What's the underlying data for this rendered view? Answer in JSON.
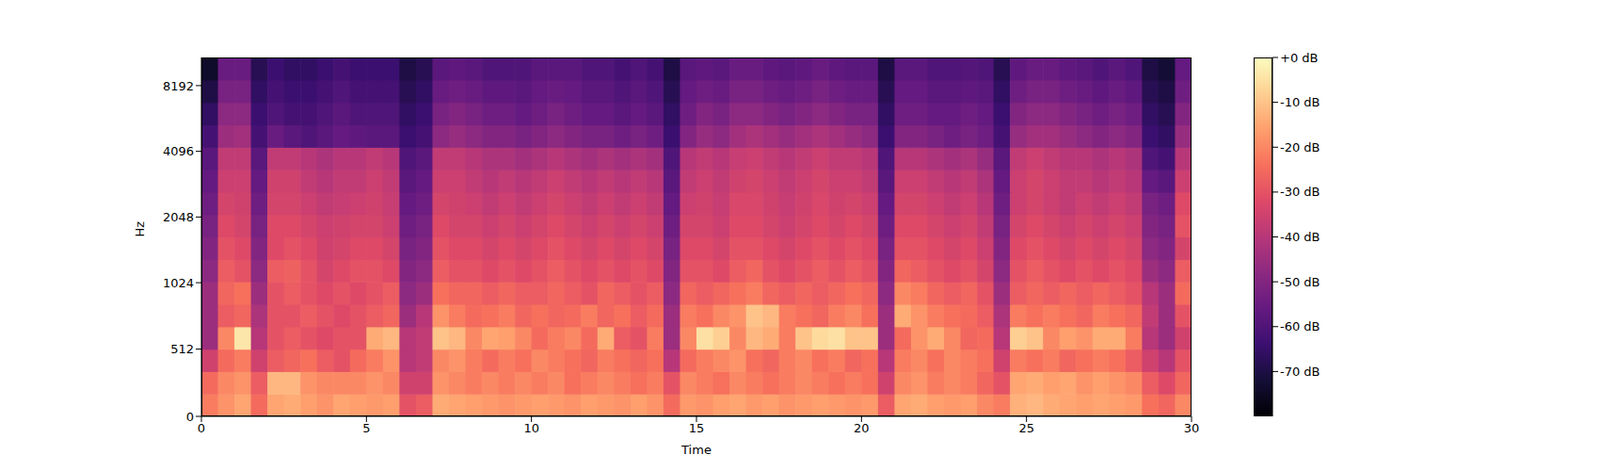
{
  "chart_data": {
    "type": "heatmap",
    "x_label": "Time",
    "y_label": "Hz",
    "x": [
      0.25,
      0.75,
      1.25,
      1.75,
      2.25,
      2.75,
      3.25,
      3.75,
      4.25,
      4.75,
      5.25,
      5.75,
      6.25,
      6.75,
      7.25,
      7.75,
      8.25,
      8.75,
      9.25,
      9.75,
      10.25,
      10.75,
      11.25,
      11.75,
      12.25,
      12.75,
      13.25,
      13.75,
      14.25,
      14.75,
      15.25,
      15.75,
      16.25,
      16.75,
      17.25,
      17.75,
      18.25,
      18.75,
      19.25,
      19.75,
      20.25,
      20.75,
      21.25,
      21.75,
      22.25,
      22.75,
      23.25,
      23.75,
      24.25,
      24.75,
      25.25,
      25.75,
      26.25,
      26.75,
      27.25,
      27.75,
      28.25,
      28.75,
      29.25,
      29.75
    ],
    "y": [
      85,
      256,
      427,
      597,
      768,
      939,
      1164,
      1474,
      1869,
      2367,
      3000,
      3800,
      4813,
      6100,
      7727,
      9793
    ],
    "z": [
      [
        -22,
        -18,
        -15,
        -25,
        -15,
        -14,
        -16,
        -18,
        -15,
        -16,
        -17,
        -16,
        -30,
        -28,
        -14,
        -15,
        -16,
        -17,
        -18,
        -17,
        -16,
        -17,
        -18,
        -16,
        -17,
        -18,
        -16,
        -18,
        -25,
        -17,
        -18,
        -16,
        -15,
        -17,
        -16,
        -18,
        -17,
        -16,
        -17,
        -18,
        -17,
        -28,
        -15,
        -14,
        -16,
        -17,
        -16,
        -20,
        -22,
        -13,
        -12,
        -14,
        -15,
        -16,
        -15,
        -16,
        -17,
        -24,
        -26,
        -20
      ],
      [
        -25,
        -20,
        -18,
        -28,
        -12,
        -12,
        -18,
        -20,
        -20,
        -20,
        -18,
        -20,
        -35,
        -35,
        -18,
        -20,
        -22,
        -20,
        -22,
        -20,
        -22,
        -20,
        -24,
        -22,
        -20,
        -22,
        -24,
        -22,
        -30,
        -20,
        -22,
        -24,
        -20,
        -22,
        -24,
        -22,
        -20,
        -22,
        -24,
        -22,
        -24,
        -35,
        -20,
        -18,
        -22,
        -20,
        -22,
        -26,
        -30,
        -15,
        -14,
        -16,
        -15,
        -18,
        -16,
        -18,
        -20,
        -28,
        -32,
        -26
      ],
      [
        -35,
        -25,
        -22,
        -35,
        -28,
        -26,
        -24,
        -28,
        -30,
        -25,
        -22,
        -18,
        -40,
        -38,
        -20,
        -18,
        -22,
        -25,
        -22,
        -24,
        -20,
        -22,
        -24,
        -26,
        -22,
        -24,
        -26,
        -24,
        -40,
        -25,
        -22,
        -20,
        -18,
        -24,
        -26,
        -22,
        -20,
        -24,
        -22,
        -26,
        -24,
        -40,
        -22,
        -20,
        -24,
        -20,
        -22,
        -24,
        -35,
        -22,
        -24,
        -22,
        -26,
        -24,
        -22,
        -24,
        -28,
        -35,
        -40,
        -30
      ],
      [
        -45,
        -20,
        -4,
        -40,
        -30,
        -28,
        -30,
        -32,
        -30,
        -30,
        -14,
        -12,
        -40,
        -38,
        -10,
        -12,
        -20,
        -15,
        -16,
        -20,
        -25,
        -22,
        -20,
        -25,
        -14,
        -28,
        -30,
        -22,
        -45,
        -20,
        -5,
        -8,
        -20,
        -12,
        -14,
        -22,
        -10,
        -6,
        -5,
        -10,
        -10,
        -45,
        -25,
        -18,
        -14,
        -20,
        -26,
        -25,
        -40,
        -8,
        -10,
        -20,
        -16,
        -18,
        -14,
        -14,
        -22,
        -40,
        -45,
        -35
      ],
      [
        -45,
        -28,
        -26,
        -42,
        -30,
        -30,
        -28,
        -30,
        -32,
        -30,
        -28,
        -26,
        -45,
        -40,
        -18,
        -22,
        -25,
        -24,
        -22,
        -26,
        -24,
        -26,
        -25,
        -22,
        -26,
        -24,
        -28,
        -25,
        -45,
        -22,
        -24,
        -20,
        -18,
        -10,
        -12,
        -22,
        -24,
        -26,
        -22,
        -20,
        -24,
        -45,
        -14,
        -18,
        -22,
        -24,
        -25,
        -28,
        -42,
        -22,
        -24,
        -22,
        -24,
        -26,
        -22,
        -24,
        -26,
        -38,
        -45,
        -30
      ],
      [
        -45,
        -26,
        -24,
        -45,
        -30,
        -28,
        -30,
        -32,
        -30,
        -32,
        -30,
        -28,
        -48,
        -45,
        -24,
        -26,
        -26,
        -28,
        -26,
        -28,
        -28,
        -26,
        -28,
        -30,
        -26,
        -28,
        -30,
        -28,
        -48,
        -26,
        -28,
        -26,
        -24,
        -22,
        -26,
        -28,
        -26,
        -28,
        -26,
        -24,
        -26,
        -48,
        -20,
        -22,
        -26,
        -28,
        -26,
        -30,
        -45,
        -28,
        -26,
        -28,
        -26,
        -28,
        -26,
        -28,
        -30,
        -40,
        -45,
        -25
      ],
      [
        -48,
        -28,
        -30,
        -48,
        -28,
        -27,
        -30,
        -34,
        -32,
        -30,
        -30,
        -32,
        -50,
        -48,
        -28,
        -30,
        -30,
        -32,
        -30,
        -32,
        -30,
        -28,
        -30,
        -32,
        -30,
        -32,
        -30,
        -32,
        -50,
        -30,
        -30,
        -32,
        -28,
        -26,
        -30,
        -32,
        -30,
        -28,
        -30,
        -28,
        -30,
        -50,
        -26,
        -28,
        -30,
        -32,
        -30,
        -34,
        -48,
        -30,
        -28,
        -30,
        -32,
        -30,
        -32,
        -30,
        -32,
        -45,
        -48,
        -28
      ],
      [
        -50,
        -30,
        -32,
        -50,
        -32,
        -30,
        -32,
        -35,
        -34,
        -32,
        -32,
        -34,
        -52,
        -50,
        -30,
        -32,
        -32,
        -34,
        -32,
        -34,
        -32,
        -30,
        -32,
        -34,
        -32,
        -34,
        -32,
        -34,
        -52,
        -32,
        -32,
        -34,
        -30,
        -30,
        -32,
        -34,
        -32,
        -30,
        -32,
        -30,
        -32,
        -52,
        -30,
        -30,
        -32,
        -34,
        -32,
        -36,
        -50,
        -32,
        -30,
        -32,
        -34,
        -32,
        -34,
        -32,
        -34,
        -48,
        -50,
        -34
      ],
      [
        -52,
        -32,
        -34,
        -52,
        -32,
        -32,
        -34,
        -36,
        -35,
        -34,
        -34,
        -36,
        -54,
        -52,
        -32,
        -34,
        -34,
        -36,
        -34,
        -36,
        -34,
        -32,
        -34,
        -36,
        -34,
        -36,
        -34,
        -36,
        -54,
        -34,
        -34,
        -36,
        -32,
        -32,
        -34,
        -36,
        -34,
        -32,
        -34,
        -32,
        -34,
        -54,
        -32,
        -32,
        -34,
        -36,
        -34,
        -38,
        -52,
        -34,
        -32,
        -34,
        -36,
        -34,
        -36,
        -34,
        -36,
        -50,
        -52,
        -30
      ],
      [
        -54,
        -34,
        -35,
        -54,
        -34,
        -34,
        -36,
        -38,
        -37,
        -36,
        -35,
        -37,
        -56,
        -54,
        -34,
        -35,
        -36,
        -38,
        -36,
        -38,
        -36,
        -34,
        -36,
        -38,
        -36,
        -38,
        -36,
        -38,
        -56,
        -36,
        -35,
        -37,
        -33,
        -33,
        -35,
        -37,
        -35,
        -33,
        -35,
        -34,
        -36,
        -56,
        -34,
        -34,
        -36,
        -38,
        -36,
        -40,
        -54,
        -36,
        -34,
        -36,
        -38,
        -36,
        -38,
        -36,
        -38,
        -52,
        -54,
        -32
      ],
      [
        -56,
        -36,
        -36,
        -56,
        -35,
        -35,
        -38,
        -40,
        -38,
        -38,
        -36,
        -38,
        -58,
        -56,
        -36,
        -36,
        -38,
        -40,
        -38,
        -40,
        -38,
        -36,
        -38,
        -40,
        -38,
        -40,
        -38,
        -40,
        -58,
        -38,
        -36,
        -38,
        -35,
        -34,
        -36,
        -38,
        -36,
        -34,
        -36,
        -36,
        -38,
        -58,
        -36,
        -36,
        -38,
        -40,
        -38,
        -42,
        -56,
        -36,
        -34,
        -36,
        -38,
        -38,
        -40,
        -38,
        -40,
        -56,
        -58,
        -36
      ],
      [
        -58,
        -38,
        -38,
        -58,
        -38,
        -38,
        -40,
        -42,
        -40,
        -40,
        -38,
        -40,
        -60,
        -58,
        -38,
        -38,
        -40,
        -42,
        -42,
        -44,
        -42,
        -40,
        -42,
        -44,
        -42,
        -44,
        -42,
        -44,
        -60,
        -40,
        -38,
        -40,
        -37,
        -36,
        -38,
        -40,
        -38,
        -36,
        -38,
        -38,
        -40,
        -60,
        -40,
        -40,
        -42,
        -44,
        -42,
        -46,
        -58,
        -38,
        -36,
        -38,
        -40,
        -40,
        -42,
        -40,
        -42,
        -60,
        -62,
        -40
      ],
      [
        -62,
        -45,
        -44,
        -62,
        -55,
        -58,
        -60,
        -58,
        -56,
        -57,
        -58,
        -58,
        -64,
        -62,
        -48,
        -46,
        -48,
        -50,
        -50,
        -52,
        -50,
        -48,
        -50,
        -52,
        -52,
        -54,
        -52,
        -54,
        -64,
        -50,
        -46,
        -48,
        -44,
        -42,
        -44,
        -46,
        -44,
        -42,
        -44,
        -46,
        -48,
        -64,
        -50,
        -50,
        -52,
        -54,
        -52,
        -54,
        -62,
        -46,
        -44,
        -44,
        -46,
        -48,
        -50,
        -48,
        -50,
        -64,
        -66,
        -46
      ],
      [
        -66,
        -48,
        -48,
        -64,
        -60,
        -62,
        -62,
        -60,
        -58,
        -60,
        -60,
        -60,
        -66,
        -64,
        -52,
        -50,
        -52,
        -54,
        -54,
        -56,
        -54,
        -52,
        -54,
        -56,
        -56,
        -58,
        -56,
        -58,
        -66,
        -54,
        -50,
        -52,
        -48,
        -48,
        -50,
        -52,
        -50,
        -48,
        -50,
        -52,
        -52,
        -66,
        -54,
        -54,
        -56,
        -56,
        -54,
        -56,
        -64,
        -50,
        -48,
        -48,
        -50,
        -52,
        -54,
        -52,
        -54,
        -66,
        -68,
        -50
      ],
      [
        -70,
        -52,
        -52,
        -66,
        -62,
        -64,
        -64,
        -62,
        -60,
        -62,
        -62,
        -62,
        -68,
        -66,
        -55,
        -54,
        -55,
        -57,
        -57,
        -58,
        -56,
        -55,
        -56,
        -58,
        -58,
        -60,
        -58,
        -60,
        -68,
        -56,
        -54,
        -55,
        -52,
        -52,
        -54,
        -55,
        -54,
        -52,
        -54,
        -55,
        -55,
        -68,
        -56,
        -56,
        -58,
        -58,
        -57,
        -58,
        -66,
        -54,
        -52,
        -52,
        -54,
        -55,
        -57,
        -55,
        -57,
        -68,
        -70,
        -54
      ],
      [
        -74,
        -55,
        -55,
        -68,
        -64,
        -66,
        -66,
        -64,
        -62,
        -64,
        -64,
        -64,
        -70,
        -68,
        -58,
        -57,
        -58,
        -60,
        -60,
        -60,
        -58,
        -58,
        -58,
        -60,
        -60,
        -62,
        -60,
        -62,
        -70,
        -58,
        -57,
        -58,
        -55,
        -55,
        -57,
        -58,
        -57,
        -55,
        -57,
        -58,
        -58,
        -70,
        -58,
        -58,
        -60,
        -60,
        -59,
        -60,
        -68,
        -57,
        -55,
        -55,
        -57,
        -58,
        -60,
        -58,
        -60,
        -70,
        -72,
        -56
      ]
    ],
    "xlim": [
      0,
      30
    ],
    "xticks": [
      0,
      5,
      10,
      15,
      20,
      25,
      30
    ],
    "ylim": [
      0,
      11025
    ],
    "yticks": [
      0,
      512,
      1024,
      2048,
      4096,
      8192
    ],
    "colorbar": {
      "range": [
        -80,
        0
      ],
      "ticks": [
        {
          "value": 0,
          "label": "+0 dB"
        },
        {
          "value": -10,
          "label": "-10 dB"
        },
        {
          "value": -20,
          "label": "-20 dB"
        },
        {
          "value": -30,
          "label": "-30 dB"
        },
        {
          "value": -40,
          "label": "-40 dB"
        },
        {
          "value": -50,
          "label": "-50 dB"
        },
        {
          "value": -60,
          "label": "-60 dB"
        },
        {
          "value": -70,
          "label": "-70 dB"
        }
      ]
    }
  }
}
